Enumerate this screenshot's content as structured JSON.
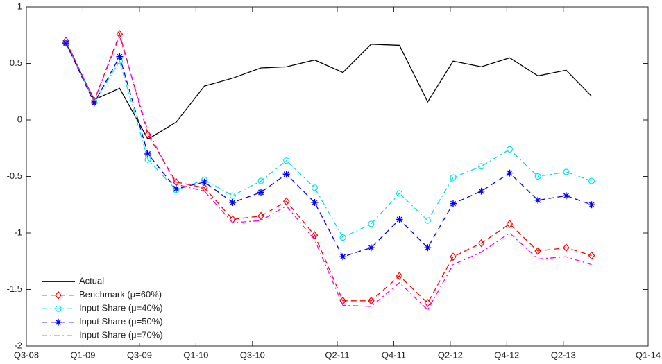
{
  "chart_data": {
    "type": "line",
    "x": [
      1.4,
      2.4,
      3.3,
      4.3,
      5.3,
      6.3,
      7.3,
      8.3,
      9.2,
      10.2,
      11.2,
      12.2,
      13.2,
      14.2,
      15.1,
      16.1,
      17.1,
      18.1,
      19.1,
      20.0
    ],
    "xlim": [
      0,
      22
    ],
    "xticks": [
      {
        "value": 0,
        "label": "Q3-08"
      },
      {
        "value": 2,
        "label": "Q1-09"
      },
      {
        "value": 4,
        "label": "Q3-09"
      },
      {
        "value": 6,
        "label": "Q1-10"
      },
      {
        "value": 8,
        "label": "Q3-10"
      },
      {
        "value": 11,
        "label": "Q2-11"
      },
      {
        "value": 13,
        "label": "Q4-11"
      },
      {
        "value": 15,
        "label": "Q2-12"
      },
      {
        "value": 17,
        "label": "Q4-12"
      },
      {
        "value": 19,
        "label": "Q2-13"
      },
      {
        "value": 22,
        "label": "Q1-14"
      }
    ],
    "ylim": [
      -2,
      1
    ],
    "yticks": [
      -2,
      -1.5,
      -1,
      -0.5,
      0,
      0.5,
      1
    ],
    "grid": false,
    "legend": "lower left",
    "series": [
      {
        "name": "Actual",
        "color": "#000000",
        "linestyle": "solid",
        "marker": "none",
        "values": [
          0.68,
          0.18,
          0.28,
          -0.17,
          -0.02,
          0.3,
          0.37,
          0.46,
          0.47,
          0.53,
          0.42,
          0.67,
          0.66,
          0.16,
          0.52,
          0.47,
          0.55,
          0.39,
          0.44,
          0.21
        ]
      },
      {
        "name": "Benchmark (μ=60%)",
        "color": "#ff0000",
        "linestyle": "dashed",
        "marker": "diamond",
        "values": [
          0.7,
          0.17,
          0.76,
          -0.13,
          -0.55,
          -0.6,
          -0.88,
          -0.85,
          -0.72,
          -1.02,
          -1.6,
          -1.6,
          -1.38,
          -1.62,
          -1.21,
          -1.09,
          -0.92,
          -1.16,
          -1.13,
          -1.2
        ]
      },
      {
        "name": "Input Share (μ=40%)",
        "color": "#00e5e5",
        "linestyle": "dashdot",
        "marker": "circle",
        "values": [
          0.68,
          0.16,
          0.52,
          -0.35,
          -0.62,
          -0.53,
          -0.67,
          -0.54,
          -0.36,
          -0.6,
          -1.04,
          -0.92,
          -0.65,
          -0.89,
          -0.51,
          -0.41,
          -0.26,
          -0.5,
          -0.46,
          -0.54
        ]
      },
      {
        "name": "Input Share (μ=50%)",
        "color": "#0000ff",
        "linestyle": "dashed",
        "marker": "star",
        "values": [
          0.68,
          0.15,
          0.56,
          -0.3,
          -0.61,
          -0.55,
          -0.73,
          -0.64,
          -0.48,
          -0.73,
          -1.21,
          -1.13,
          -0.88,
          -1.13,
          -0.74,
          -0.63,
          -0.47,
          -0.71,
          -0.67,
          -0.75
        ]
      },
      {
        "name": "Input Share (μ=70%)",
        "color": "#ff00ff",
        "linestyle": "dashdot",
        "marker": "none",
        "values": [
          0.7,
          0.17,
          0.74,
          -0.1,
          -0.57,
          -0.63,
          -0.91,
          -0.89,
          -0.76,
          -1.06,
          -1.64,
          -1.65,
          -1.44,
          -1.68,
          -1.28,
          -1.17,
          -1.0,
          -1.23,
          -1.21,
          -1.28
        ]
      }
    ]
  }
}
